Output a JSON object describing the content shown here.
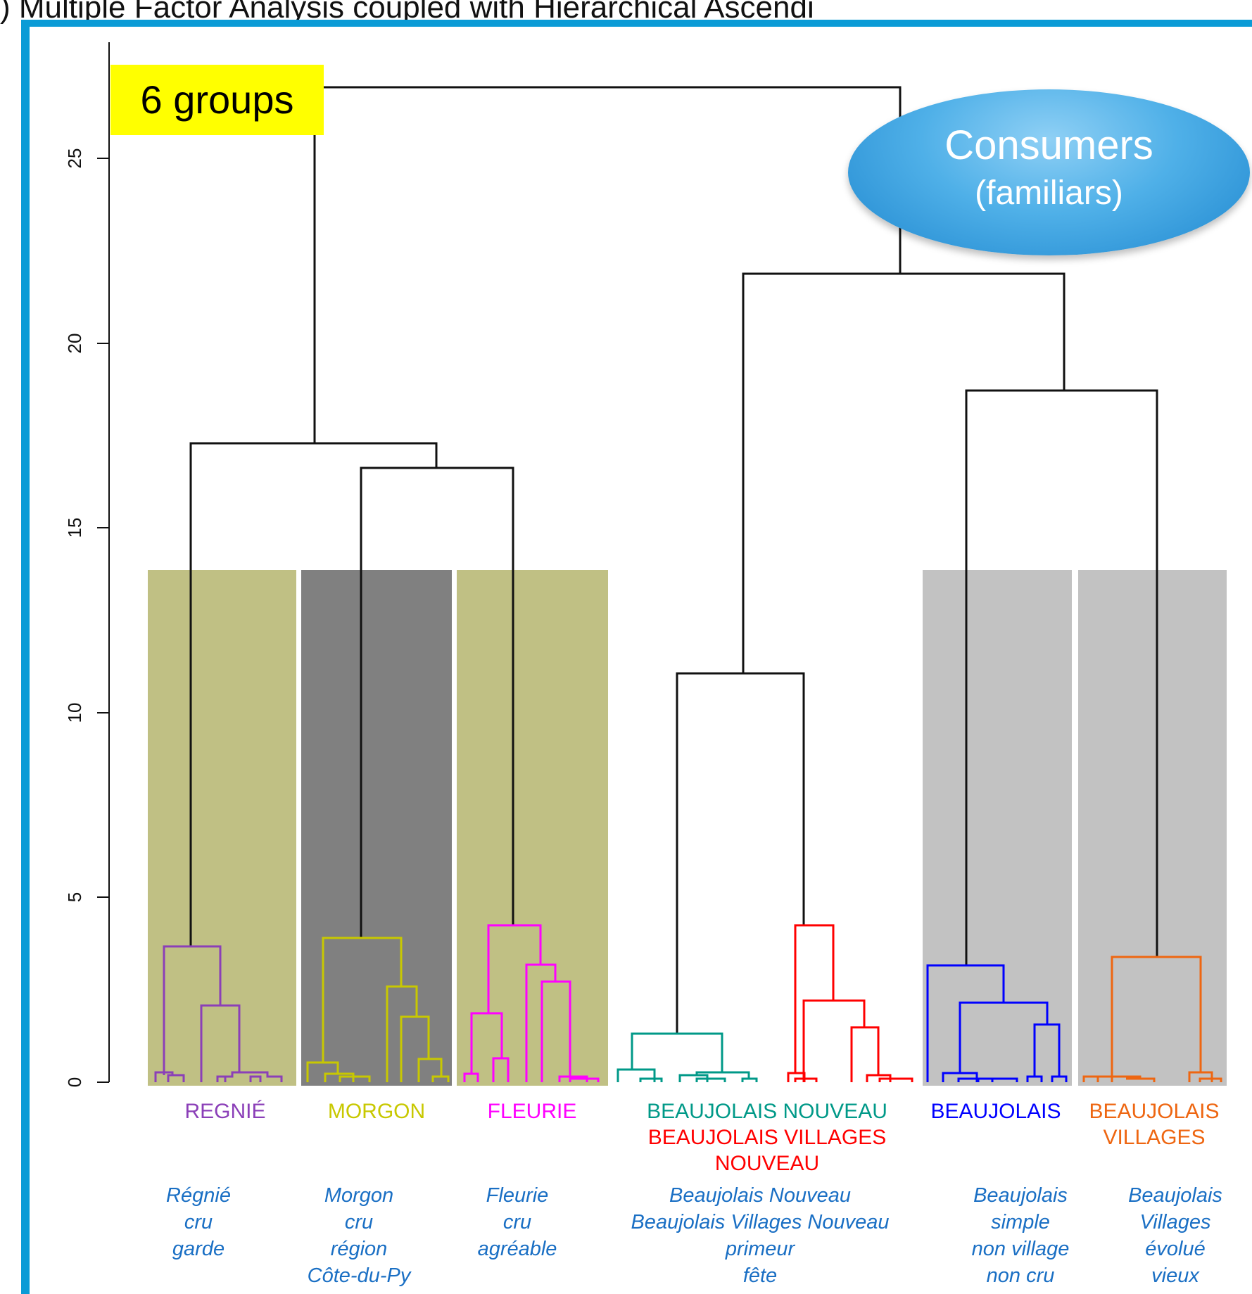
{
  "header": {
    "title": ") Multiple Factor Analysis coupled with Hierarchical Ascendi"
  },
  "badge": {
    "text": "6 groups"
  },
  "bubble": {
    "line1": "Consumers",
    "line2": "(familiars)"
  },
  "colors": {
    "frame": "#0a9bd6",
    "regnie": "#8b3fb8",
    "morgon": "#c8c800",
    "fleurie": "#ff00ff",
    "nouveau": "#009988",
    "villages_nouveau": "#ff0000",
    "beaujolais": "#0000ff",
    "villages": "#ee6611",
    "description": "#1a6fc4",
    "band_olive": "#c0c084",
    "band_dark": "#808080",
    "band_light": "#c2c2c2"
  },
  "axis": {
    "ylim": [
      0,
      27
    ],
    "ticks": [
      "0",
      "5",
      "10",
      "15",
      "20",
      "25"
    ]
  },
  "groups": [
    {
      "label": [
        "REGNIÉ"
      ],
      "description": [
        "Régnié",
        "cru",
        "garde"
      ]
    },
    {
      "label": [
        "MORGON"
      ],
      "description": [
        "Morgon",
        "cru",
        "région",
        "Côte-du-Py"
      ]
    },
    {
      "label": [
        "FLEURIE"
      ],
      "description": [
        "Fleurie",
        "cru",
        "agréable"
      ]
    },
    {
      "label": [
        "BEAUJOLAIS NOUVEAU",
        "BEAUJOLAIS VILLAGES",
        "NOUVEAU"
      ],
      "description": [
        "Beaujolais Nouveau",
        "Beaujolais Villages Nouveau",
        "primeur",
        "fête"
      ]
    },
    {
      "label": [
        "BEAUJOLAIS"
      ],
      "description": [
        "Beaujolais",
        "simple",
        "non village",
        "non cru"
      ]
    },
    {
      "label": [
        "BEAUJOLAIS",
        "VILLAGES"
      ],
      "description": [
        "Beaujolais",
        "Villages",
        "évolué",
        "vieux"
      ]
    }
  ]
}
